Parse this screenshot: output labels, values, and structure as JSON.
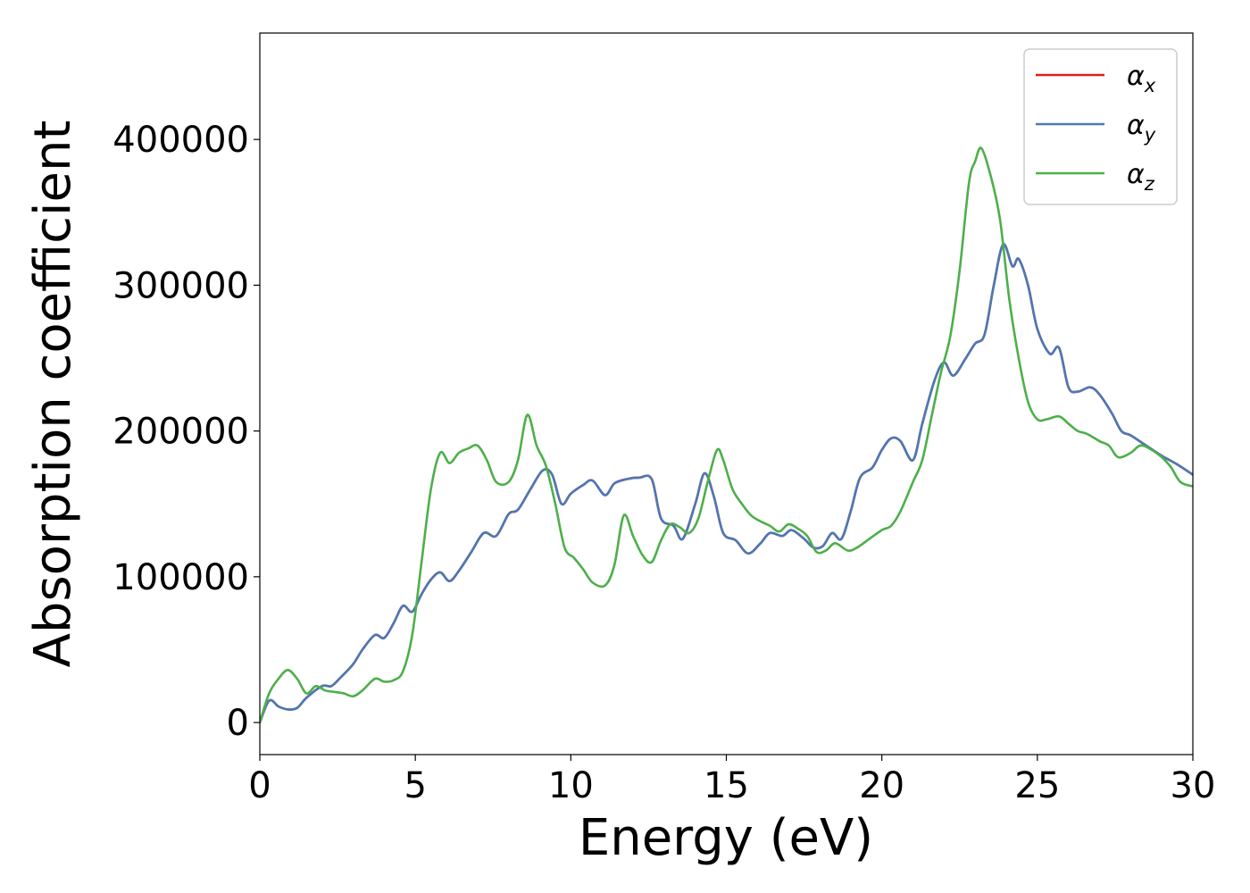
{
  "chart_data": {
    "type": "line",
    "xlabel": "Energy (eV)",
    "ylabel": "Absorption coefficient",
    "xlim": [
      0,
      30
    ],
    "ylim": [
      -22000,
      473000
    ],
    "xticks": [
      0,
      5,
      10,
      15,
      20,
      25,
      30
    ],
    "xtick_labels": [
      "0",
      "5",
      "10",
      "15",
      "20",
      "25",
      "30"
    ],
    "yticks": [
      0,
      100000,
      200000,
      300000,
      400000
    ],
    "ytick_labels": [
      "0",
      "100000",
      "200000",
      "300000",
      "400000"
    ],
    "grid": false,
    "legend": {
      "position": "top-right"
    },
    "series": [
      {
        "name": "α_x",
        "symbol": "α",
        "subscript": "x",
        "color": "#e41a1c",
        "note_visible": "hidden behind α_y (identical values)",
        "x": [
          0,
          0.3,
          0.6,
          0.9,
          1.2,
          1.5,
          2.0,
          2.3,
          2.6,
          3.0,
          3.3,
          3.7,
          4.0,
          4.3,
          4.6,
          4.9,
          5.2,
          5.5,
          5.8,
          6.1,
          6.4,
          6.8,
          7.2,
          7.6,
          8.0,
          8.3,
          8.7,
          9.1,
          9.4,
          9.7,
          10.0,
          10.4,
          10.7,
          11.1,
          11.4,
          11.8,
          12.2,
          12.6,
          12.9,
          13.3,
          13.6,
          14.0,
          14.3,
          14.6,
          14.9,
          15.3,
          15.7,
          16.1,
          16.4,
          16.8,
          17.1,
          17.5,
          17.8,
          18.1,
          18.4,
          18.7,
          19.0,
          19.3,
          19.7,
          20.0,
          20.3,
          20.6,
          21.0,
          21.3,
          21.7,
          22.0,
          22.3,
          22.7,
          23.0,
          23.3,
          23.6,
          23.9,
          24.2,
          24.4,
          24.7,
          25.0,
          25.4,
          25.7,
          26.0,
          26.3,
          26.7,
          27.0,
          27.4,
          27.7,
          28.0,
          28.5,
          29.0,
          29.5,
          30.0
        ],
        "y": [
          0,
          15000,
          11000,
          9000,
          10000,
          17000,
          25000,
          25000,
          31000,
          40000,
          50000,
          60000,
          58000,
          68000,
          80000,
          76000,
          88000,
          98000,
          103000,
          97000,
          104000,
          117000,
          130000,
          128000,
          143000,
          146000,
          160000,
          173000,
          170000,
          150000,
          157000,
          163000,
          166000,
          156000,
          164000,
          167000,
          168000,
          167000,
          140000,
          135000,
          126000,
          150000,
          171000,
          155000,
          130000,
          125000,
          116000,
          123000,
          130000,
          128000,
          132000,
          126000,
          120000,
          121000,
          130000,
          126000,
          145000,
          168000,
          175000,
          187000,
          195000,
          193000,
          180000,
          205000,
          235000,
          247000,
          238000,
          250000,
          260000,
          266000,
          300000,
          328000,
          313000,
          318000,
          300000,
          270000,
          253000,
          257000,
          230000,
          227000,
          230000,
          225000,
          212000,
          200000,
          197000,
          190000,
          183000,
          177000,
          170000
        ]
      },
      {
        "name": "α_y",
        "symbol": "α",
        "subscript": "y",
        "color": "#4a79b5",
        "x": [
          0,
          0.3,
          0.6,
          0.9,
          1.2,
          1.5,
          2.0,
          2.3,
          2.6,
          3.0,
          3.3,
          3.7,
          4.0,
          4.3,
          4.6,
          4.9,
          5.2,
          5.5,
          5.8,
          6.1,
          6.4,
          6.8,
          7.2,
          7.6,
          8.0,
          8.3,
          8.7,
          9.1,
          9.4,
          9.7,
          10.0,
          10.4,
          10.7,
          11.1,
          11.4,
          11.8,
          12.2,
          12.6,
          12.9,
          13.3,
          13.6,
          14.0,
          14.3,
          14.6,
          14.9,
          15.3,
          15.7,
          16.1,
          16.4,
          16.8,
          17.1,
          17.5,
          17.8,
          18.1,
          18.4,
          18.7,
          19.0,
          19.3,
          19.7,
          20.0,
          20.3,
          20.6,
          21.0,
          21.3,
          21.7,
          22.0,
          22.3,
          22.7,
          23.0,
          23.3,
          23.6,
          23.9,
          24.2,
          24.4,
          24.7,
          25.0,
          25.4,
          25.7,
          26.0,
          26.3,
          26.7,
          27.0,
          27.4,
          27.7,
          28.0,
          28.5,
          29.0,
          29.5,
          30.0
        ],
        "y": [
          0,
          15000,
          11000,
          9000,
          10000,
          17000,
          25000,
          25000,
          31000,
          40000,
          50000,
          60000,
          58000,
          68000,
          80000,
          76000,
          88000,
          98000,
          103000,
          97000,
          104000,
          117000,
          130000,
          128000,
          143000,
          146000,
          160000,
          173000,
          170000,
          150000,
          157000,
          163000,
          166000,
          156000,
          164000,
          167000,
          168000,
          167000,
          140000,
          135000,
          126000,
          150000,
          171000,
          155000,
          130000,
          125000,
          116000,
          123000,
          130000,
          128000,
          132000,
          126000,
          120000,
          121000,
          130000,
          126000,
          145000,
          168000,
          175000,
          187000,
          195000,
          193000,
          180000,
          205000,
          235000,
          247000,
          238000,
          250000,
          260000,
          266000,
          300000,
          328000,
          313000,
          318000,
          300000,
          270000,
          253000,
          257000,
          230000,
          227000,
          230000,
          225000,
          212000,
          200000,
          197000,
          190000,
          183000,
          177000,
          170000
        ]
      },
      {
        "name": "α_z",
        "symbol": "α",
        "subscript": "z",
        "color": "#4daf4a",
        "x": [
          0,
          0.3,
          0.6,
          0.9,
          1.2,
          1.5,
          1.8,
          2.1,
          2.4,
          2.7,
          3.0,
          3.3,
          3.7,
          4.0,
          4.3,
          4.6,
          4.9,
          5.2,
          5.5,
          5.8,
          6.1,
          6.4,
          6.7,
          7.0,
          7.3,
          7.6,
          8.0,
          8.3,
          8.6,
          8.9,
          9.2,
          9.5,
          9.8,
          10.1,
          10.4,
          10.7,
          11.1,
          11.4,
          11.7,
          12.0,
          12.3,
          12.6,
          12.9,
          13.2,
          13.5,
          13.8,
          14.1,
          14.4,
          14.7,
          14.9,
          15.2,
          15.5,
          15.8,
          16.1,
          16.4,
          16.7,
          17.0,
          17.3,
          17.6,
          17.9,
          18.2,
          18.5,
          18.9,
          19.2,
          19.6,
          20.0,
          20.3,
          20.6,
          21.0,
          21.3,
          21.6,
          21.9,
          22.2,
          22.5,
          22.8,
          23.0,
          23.2,
          23.5,
          23.8,
          24.1,
          24.4,
          24.7,
          25.0,
          25.3,
          25.7,
          26.0,
          26.3,
          26.6,
          27.0,
          27.3,
          27.6,
          28.0,
          28.3,
          28.6,
          29.0,
          29.3,
          29.6,
          30.0
        ],
        "y": [
          0,
          20000,
          30000,
          36000,
          30000,
          20000,
          25000,
          22000,
          21000,
          20000,
          18000,
          22000,
          30000,
          28000,
          29000,
          35000,
          60000,
          110000,
          160000,
          185000,
          178000,
          185000,
          188000,
          190000,
          180000,
          165000,
          165000,
          180000,
          211000,
          190000,
          176000,
          150000,
          120000,
          113000,
          105000,
          96000,
          94000,
          108000,
          142000,
          128000,
          115000,
          110000,
          125000,
          136000,
          134000,
          130000,
          140000,
          165000,
          187000,
          180000,
          160000,
          150000,
          142000,
          138000,
          135000,
          131000,
          136000,
          133000,
          128000,
          117000,
          118000,
          123000,
          118000,
          120000,
          126000,
          132000,
          135000,
          145000,
          165000,
          180000,
          210000,
          240000,
          265000,
          310000,
          370000,
          385000,
          394000,
          375000,
          345000,
          290000,
          250000,
          220000,
          208000,
          208000,
          210000,
          205000,
          200000,
          198000,
          193000,
          190000,
          182000,
          185000,
          190000,
          188000,
          182000,
          175000,
          165000,
          162000
        ]
      }
    ]
  }
}
